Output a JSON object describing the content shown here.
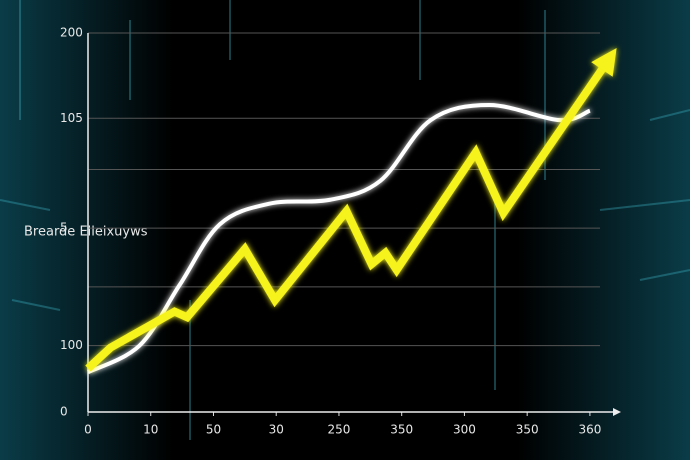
{
  "chart_data": {
    "type": "line",
    "y_label": "Brearde Elleixuyws",
    "xlim": [
      0,
      420
    ],
    "ylim": [
      0,
      200
    ],
    "xticks": [
      0,
      {
        "value": 50,
        "label": "10"
      },
      {
        "value": 100,
        "label": "50"
      },
      {
        "value": 150,
        "label": "30"
      },
      {
        "value": 200,
        "label": "250"
      },
      {
        "value": 250,
        "label": "350"
      },
      {
        "value": 300,
        "label": "300"
      },
      {
        "value": 350,
        "label": "350"
      },
      {
        "value": 400,
        "label": "360"
      }
    ],
    "yticks": [
      0,
      {
        "value": 35,
        "label": "100"
      },
      {
        "value": 66,
        "label": null
      },
      {
        "value": 97,
        "label": "5"
      },
      {
        "value": 128,
        "label": null
      },
      {
        "value": 155,
        "label": "105"
      },
      200
    ],
    "grid": true,
    "series": [
      {
        "name": null,
        "color": "#ffffff",
        "smooth": true,
        "x": [
          0,
          41,
          73,
          105,
          145,
          193,
          233,
          273,
          320,
          376,
          400
        ],
        "values": [
          21,
          35,
          67,
          99,
          110,
          112,
          122,
          154,
          162,
          154,
          159
        ]
      },
      {
        "name": null,
        "color": "#f5f21a",
        "smooth": false,
        "arrow": true,
        "x": [
          0,
          18,
          69,
          79,
          125,
          149,
          206,
          226,
          237,
          246,
          309,
          331,
          415
        ],
        "values": [
          23,
          34,
          53,
          50,
          86,
          59,
          106,
          78,
          84,
          75,
          137,
          105,
          186
        ]
      }
    ]
  }
}
